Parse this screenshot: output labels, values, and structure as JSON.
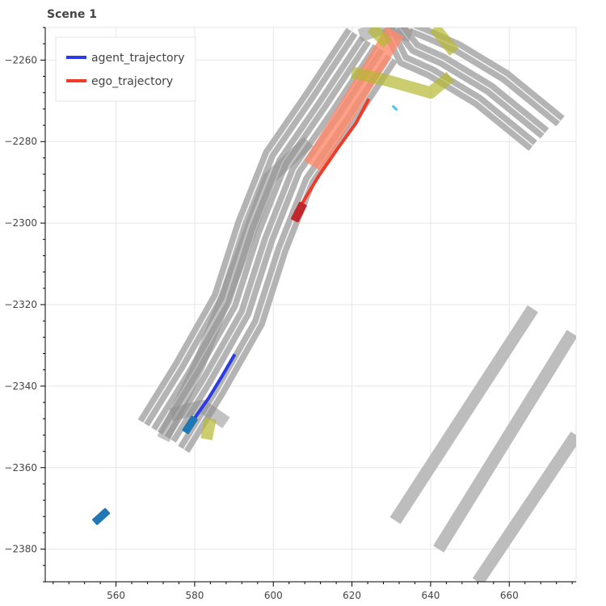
{
  "chart_data": {
    "type": "scatter",
    "title": "Scene 1",
    "xlabel": "",
    "ylabel": "",
    "xlim": [
      542,
      677
    ],
    "ylim": [
      -2388,
      -2252
    ],
    "x_ticks": [
      560,
      580,
      600,
      620,
      640,
      660
    ],
    "y_ticks": [
      -2260,
      -2280,
      -2300,
      -2320,
      -2340,
      -2360,
      -2380
    ],
    "legend_position": "top-left",
    "grid": true,
    "colors": {
      "lane": "#b4b4b4",
      "lane_divider": "#ffffff",
      "lane_overlap": "#8f8f8f",
      "crosswalk": "#bdbdbd",
      "intersection_zone": "#b5b832",
      "ego_path_area": "#ff8a6b",
      "agent_box": "#1f77b4",
      "ego_box": "#c0282c",
      "pedestrian": "#4fc3f7",
      "grid": "#e6e6e6",
      "axis": "#000000"
    },
    "series": [
      {
        "name": "agent_trajectory",
        "color": "#2c3be8",
        "x": [
          579.5,
          583.5,
          587.0,
          590.2
        ],
        "y": [
          -2348.5,
          -2343.0,
          -2337.5,
          -2332.2
        ]
      },
      {
        "name": "ego_trajectory",
        "color": "#f03a2a",
        "x": [
          606.8,
          611.5,
          616.5,
          621.0,
          624.3
        ],
        "y": [
          -2296.0,
          -2288.5,
          -2281.5,
          -2275.5,
          -2269.5
        ]
      }
    ],
    "vehicles": [
      {
        "role": "agent",
        "cx": 578.8,
        "cy": -2349.5,
        "length": 4.6,
        "width": 2.0,
        "heading_deg": 57,
        "color": "#1f77b4"
      },
      {
        "role": "agent",
        "cx": 556.2,
        "cy": -2372.0,
        "length": 4.6,
        "width": 2.0,
        "heading_deg": 42,
        "color": "#1f77b4"
      },
      {
        "role": "ego",
        "cx": 606.5,
        "cy": -2297.3,
        "length": 5.0,
        "width": 2.2,
        "heading_deg": 63,
        "color": "#c0282c"
      }
    ],
    "pedestrian": {
      "x": [
        630.3,
        631.5
      ],
      "y": [
        -2271.2,
        -2272.3
      ]
    },
    "map": {
      "lane_width": 3.4,
      "lanes": [
        {
          "pts": [
            [
              567,
              -2349
            ],
            [
              576,
              -2335
            ],
            [
              586,
              -2318
            ],
            [
              592,
              -2300
            ],
            [
              599,
              -2283
            ],
            [
              609,
              -2269
            ],
            [
              620,
              -2253
            ]
          ]
        },
        {
          "pts": [
            [
              570.4,
              -2351
            ],
            [
              579.4,
              -2337
            ],
            [
              589.4,
              -2320
            ],
            [
              595.4,
              -2302
            ],
            [
              602.4,
              -2285
            ],
            [
              612.4,
              -2271
            ],
            [
              623.4,
              -2255
            ]
          ]
        },
        {
          "pts": [
            [
              573.8,
              -2353
            ],
            [
              582.8,
              -2339
            ],
            [
              592.8,
              -2322
            ],
            [
              598.8,
              -2304
            ],
            [
              605.8,
              -2287
            ],
            [
              615.8,
              -2273
            ],
            [
              626.8,
              -2257
            ]
          ]
        },
        {
          "pts": [
            [
              577.2,
              -2355.5
            ],
            [
              586.2,
              -2341.5
            ],
            [
              596.2,
              -2324.5
            ],
            [
              602.2,
              -2306.5
            ],
            [
              609.2,
              -2289.5
            ],
            [
              619.2,
              -2275.5
            ],
            [
              630.2,
              -2259.5
            ]
          ]
        },
        {
          "pts": [
            [
              629,
              -2252
            ],
            [
              633,
              -2260
            ],
            [
              640,
              -2263
            ],
            [
              652,
              -2270
            ],
            [
              666,
              -2281
            ]
          ]
        },
        {
          "pts": [
            [
              632,
              -2252
            ],
            [
              636,
              -2257
            ],
            [
              643,
              -2260
            ],
            [
              655,
              -2267
            ],
            [
              669,
              -2278
            ]
          ]
        },
        {
          "pts": [
            [
              635,
              -2252
            ],
            [
              640,
              -2254
            ],
            [
              647,
              -2257
            ],
            [
              659,
              -2264
            ],
            [
              673,
              -2275
            ]
          ]
        }
      ],
      "overlap_lanes": [
        {
          "pts": [
            [
              572,
              -2353
            ],
            [
              581,
              -2335
            ],
            [
              591,
              -2310
            ],
            [
              599,
              -2289
            ],
            [
              609,
              -2280
            ]
          ]
        },
        {
          "pts": [
            [
              574,
              -2347
            ],
            [
              582,
              -2345
            ],
            [
              588,
              -2349
            ]
          ]
        },
        {
          "pts": [
            [
              622,
              -2254
            ],
            [
              628,
              -2252
            ],
            [
              635,
              -2254
            ]
          ]
        }
      ],
      "crosswalks": [
        {
          "pts": [
            [
              666,
              -2321
            ],
            [
              631,
              -2373
            ]
          ]
        },
        {
          "pts": [
            [
              676,
              -2327
            ],
            [
              642,
              -2380
            ]
          ]
        },
        {
          "pts": [
            [
              677,
              -2352
            ],
            [
              652,
              -2388
            ]
          ]
        }
      ],
      "intersection_zones": [
        {
          "pts": [
            [
              620,
              -2263
            ],
            [
              629,
              -2265
            ],
            [
              640,
              -2268
            ],
            [
              645,
              -2264
            ]
          ]
        },
        {
          "pts": [
            [
              641,
              -2252
            ],
            [
              646,
              -2258
            ]
          ]
        },
        {
          "pts": [
            [
              625,
              -2252
            ],
            [
              629,
              -2256
            ]
          ]
        },
        {
          "pts": [
            [
              584,
              -2348
            ],
            [
              583,
              -2353
            ]
          ]
        }
      ],
      "ego_path_area": {
        "pts": [
          [
            610,
            -2286
          ],
          [
            617,
            -2275
          ],
          [
            624,
            -2264
          ],
          [
            631,
            -2253
          ]
        ]
      }
    }
  }
}
